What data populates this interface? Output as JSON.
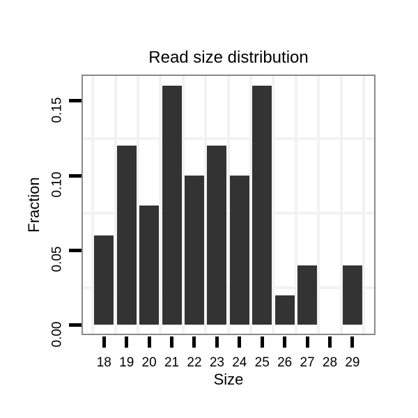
{
  "chart_data": {
    "type": "bar",
    "title": "Read size distribution",
    "xlabel": "Size",
    "ylabel": "Fraction",
    "categories": [
      "18",
      "19",
      "20",
      "21",
      "22",
      "23",
      "24",
      "25",
      "26",
      "27",
      "28",
      "29"
    ],
    "values": [
      0.06,
      0.12,
      0.08,
      0.16,
      0.1,
      0.12,
      0.1,
      0.16,
      0.02,
      0.04,
      0.0,
      0.04
    ],
    "ytick_labels": [
      "0.00",
      "0.05",
      "0.10",
      "0.15"
    ],
    "ytick_values": [
      0.0,
      0.05,
      0.1,
      0.15
    ],
    "minor_grid_y_values": [
      0.025,
      0.075,
      0.125
    ],
    "ylim": [
      0,
      0.1675
    ],
    "grid": "minor-only",
    "legend": "none",
    "colors": {
      "bar": "#333333",
      "panel_border": "#8a8a8a",
      "gridline": "#f2f2f2",
      "tick": "#000000",
      "text": "#000000",
      "background": "#ffffff"
    }
  }
}
